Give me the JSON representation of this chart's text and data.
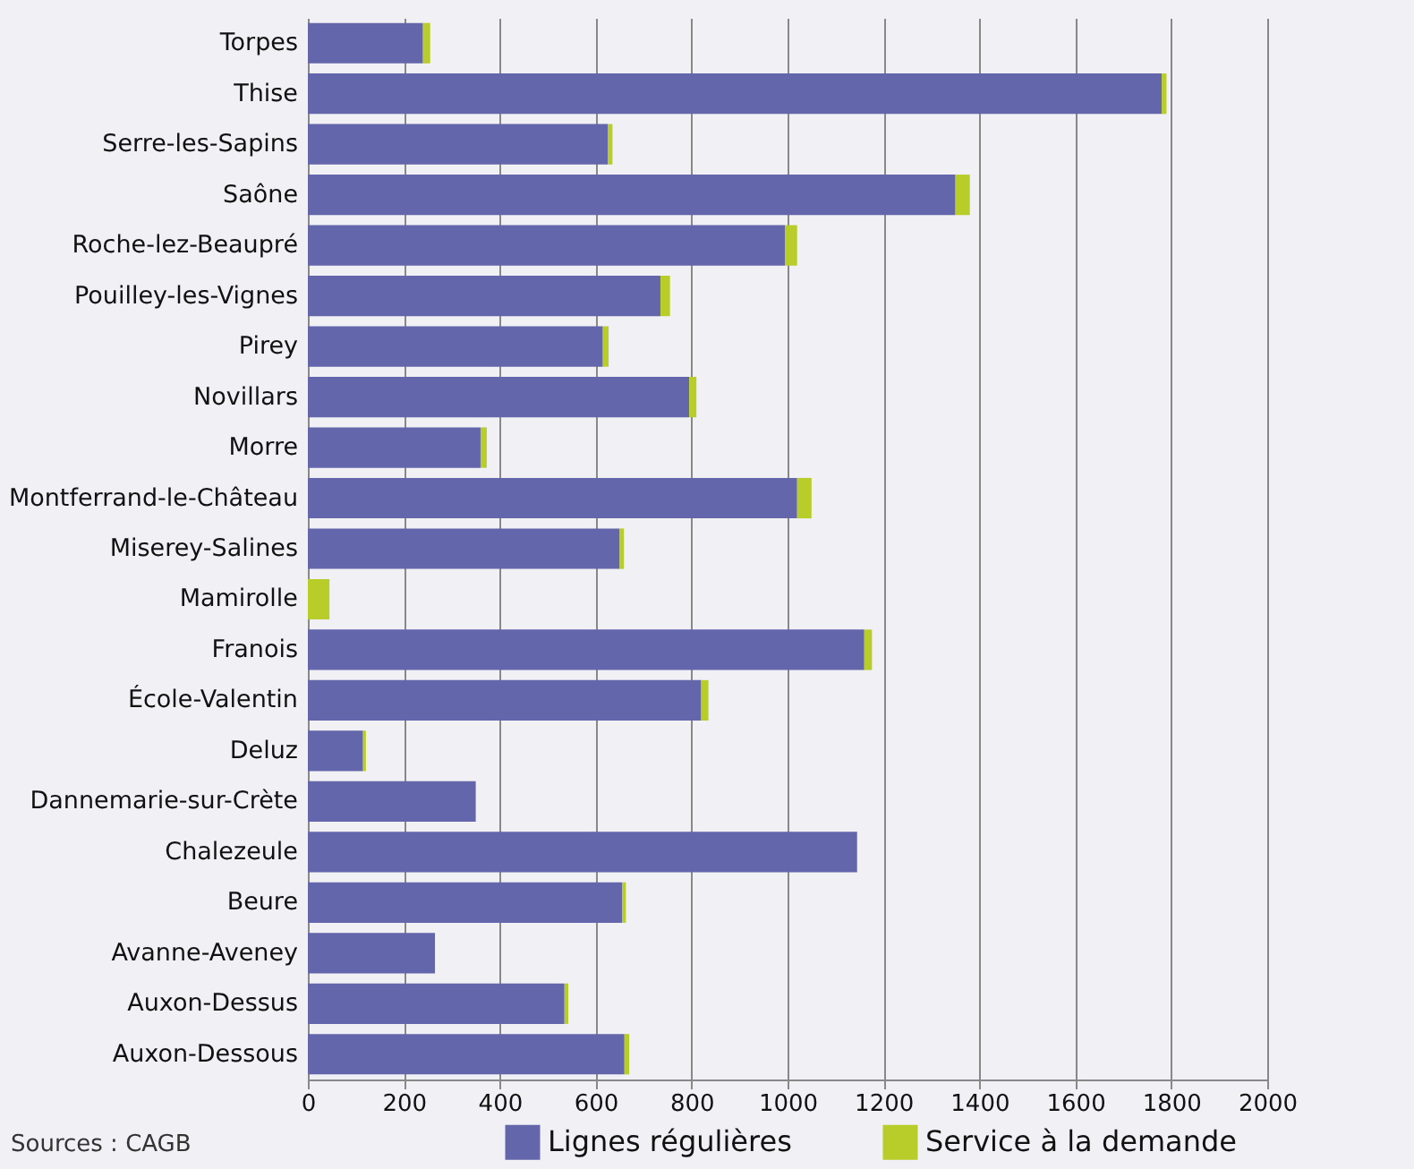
{
  "chart_data": {
    "type": "bar",
    "orientation": "horizontal",
    "stacked": true,
    "categories": [
      "Torpes",
      "Thise",
      "Serre-les-Sapins",
      "Saône",
      "Roche-lez-Beaupré",
      "Pouilley-les-Vignes",
      "Pirey",
      "Novillars",
      "Morre",
      "Montferrand-le-Château",
      "Miserey-Salines",
      "Mamirolle",
      "Franois",
      "École-Valentin",
      "Deluz",
      "Dannemarie-sur-Crète",
      "Chalezeule",
      "Beure",
      "Avanne-Aveney",
      "Auxon-Dessus",
      "Auxon-Dessous"
    ],
    "series": [
      {
        "name": "Lignes régulières",
        "color": "#6366aa",
        "values": [
          240,
          1780,
          625,
          1350,
          995,
          735,
          615,
          795,
          360,
          1020,
          650,
          0,
          1160,
          820,
          115,
          350,
          1145,
          655,
          265,
          535,
          660
        ]
      },
      {
        "name": "Service à la demande",
        "color": "#b8cc2a",
        "values": [
          15,
          10,
          10,
          30,
          25,
          20,
          12,
          15,
          13,
          30,
          9,
          45,
          16,
          15,
          6,
          0,
          0,
          8,
          0,
          8,
          10
        ]
      }
    ],
    "xlim": [
      0,
      2000
    ],
    "xticks": [
      0,
      200,
      400,
      600,
      800,
      1000,
      1200,
      1400,
      1600,
      1800,
      2000
    ],
    "grid": "x",
    "legend": "bottom",
    "annotations": [
      "Sources : CAGB"
    ]
  }
}
